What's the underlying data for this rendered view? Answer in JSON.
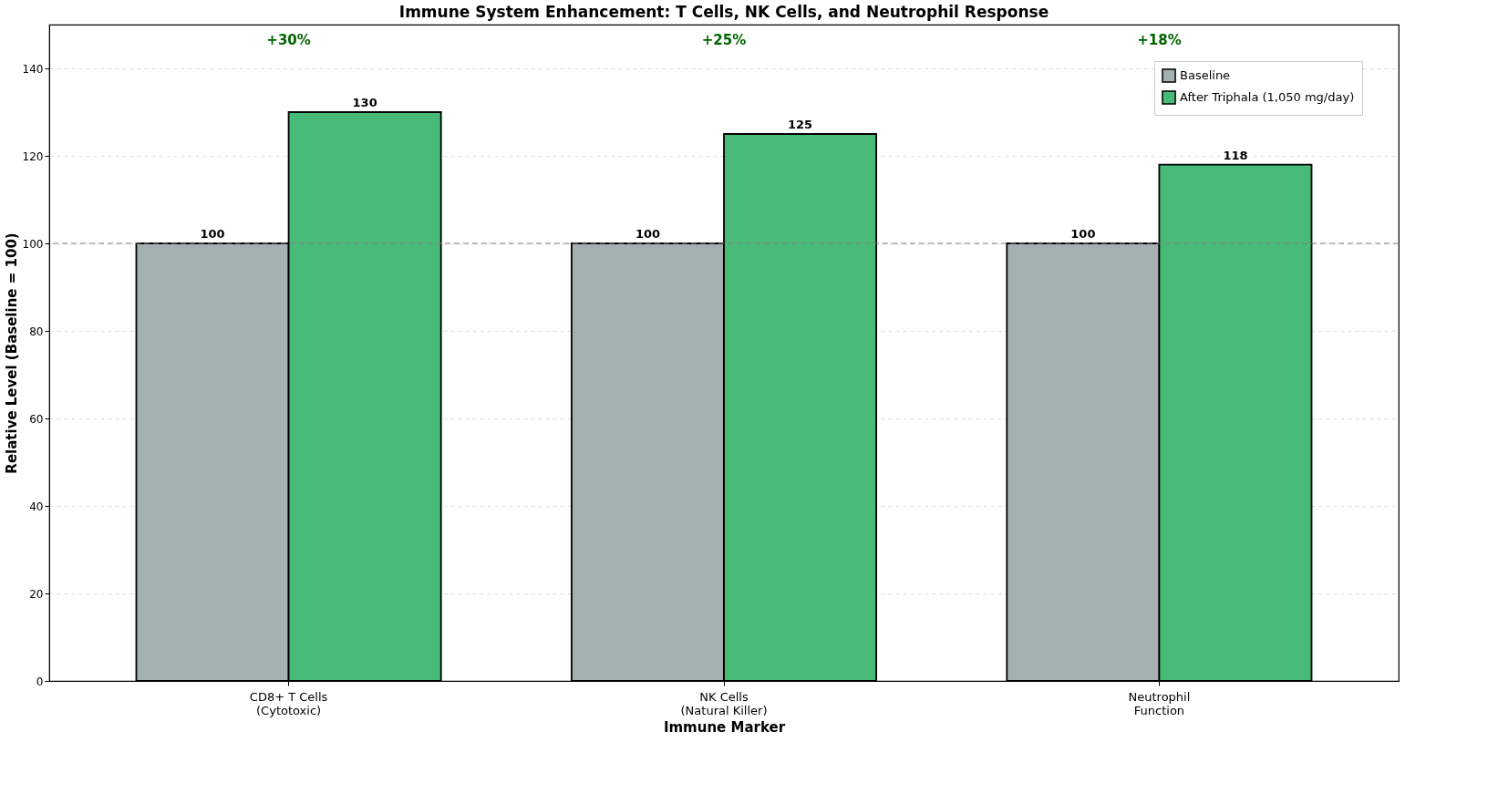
{
  "chart_data": {
    "type": "bar",
    "title": "Immune System Enhancement: T Cells, NK Cells, and Neutrophil Response",
    "xlabel": "Immune Marker",
    "ylabel": "Relative Level (Baseline = 100)",
    "categories": [
      "CD8+ T Cells\n(Cytotoxic)",
      "NK Cells\n(Natural Killer)",
      "Neutrophil\nFunction"
    ],
    "series": [
      {
        "name": "Baseline",
        "color": "#a4b0b1",
        "values": [
          100,
          100,
          100
        ]
      },
      {
        "name": "After Triphala (1,050 mg/day)",
        "color": "#48ba78",
        "values": [
          130,
          125,
          118
        ]
      }
    ],
    "ylim": [
      0,
      150
    ],
    "yticks": [
      0,
      20,
      40,
      60,
      80,
      100,
      120,
      140
    ],
    "grid": "y",
    "legend": "top right",
    "data_labels": true,
    "ref_lines": [
      {
        "axis": "y",
        "value": 100,
        "color": "#808080",
        "line_style": "dashed"
      }
    ],
    "annotations": [
      "+30%",
      "+25%",
      "+18%"
    ]
  }
}
